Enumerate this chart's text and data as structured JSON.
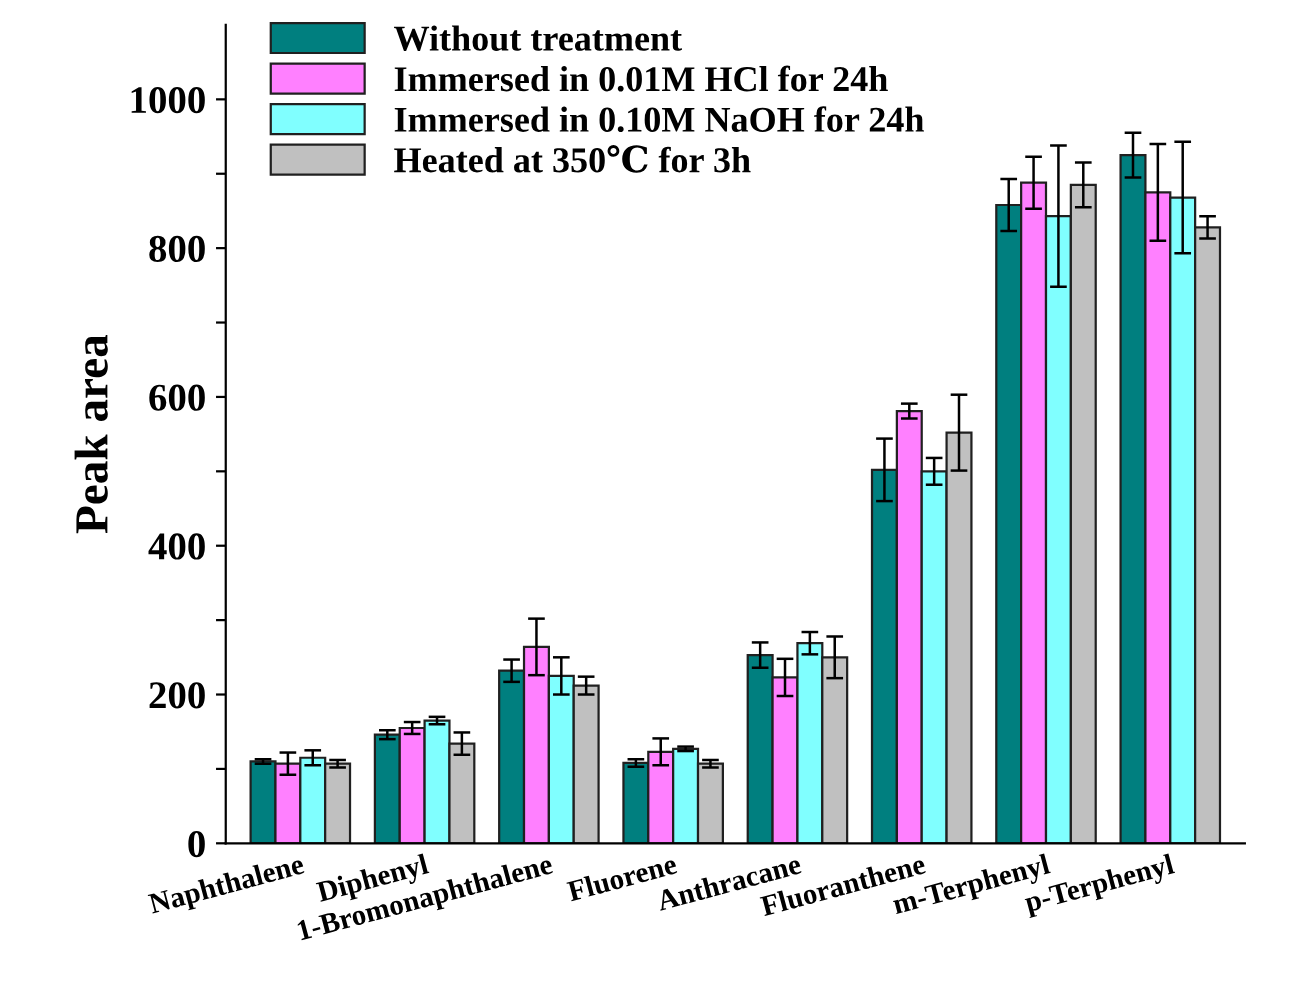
{
  "chart_data": {
    "type": "bar",
    "ylabel": "Peak area",
    "categories": [
      "Naphthalene",
      "Diphenyl",
      "1-Bromonaphthalene",
      "Fluorene",
      "Anthracane",
      "Fluoranthene",
      "m-Terphenyl",
      "p-Terphenyl"
    ],
    "series": [
      {
        "name": "Without treatment",
        "color": "#007f7f",
        "values": [
          110,
          146,
          232,
          108,
          253,
          502,
          858,
          925
        ],
        "errors": [
          3,
          6,
          15,
          5,
          17,
          42,
          35,
          30
        ]
      },
      {
        "name": "Immersed in 0.01M HCl for 24h",
        "color": "#ff80ff",
        "values": [
          107,
          155,
          264,
          123,
          223,
          581,
          888,
          875
        ],
        "errors": [
          15,
          8,
          38,
          18,
          25,
          10,
          35,
          65
        ]
      },
      {
        "name": "Immersed in 0.10M NaOH for 24h",
        "color": "#80ffff",
        "values": [
          115,
          165,
          225,
          127,
          269,
          500,
          843,
          868
        ],
        "errors": [
          10,
          5,
          25,
          3,
          15,
          18,
          95,
          75
        ]
      },
      {
        "name": "Heated at 350℃ for 3h",
        "color": "#c0c0c0",
        "values": [
          107,
          134,
          212,
          107,
          250,
          552,
          885,
          828
        ],
        "errors": [
          5,
          15,
          12,
          5,
          28,
          51,
          30,
          15
        ]
      }
    ],
    "ylim": [
      0,
      1100
    ],
    "yticks": [
      0,
      {
        "value": 100,
        "label": null
      },
      200,
      {
        "value": 300,
        "label": null
      },
      400,
      {
        "value": 500,
        "label": null
      },
      600,
      {
        "value": 700,
        "label": null
      },
      800,
      {
        "value": 900,
        "label": null
      },
      1000
    ],
    "legend": "top left",
    "grid": false
  }
}
